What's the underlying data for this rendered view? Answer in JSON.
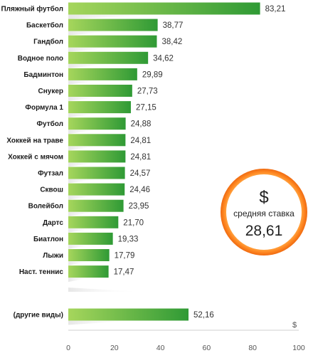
{
  "chart_data": {
    "type": "bar",
    "orientation": "horizontal",
    "categories": [
      "Пляжный футбол",
      "Баскетбол",
      "Гандбол",
      "Водное поло",
      "Бадминтон",
      "Снукер",
      "Формула 1",
      "Футбол",
      "Хоккей на траве",
      "Хоккей с мячом",
      "Футзал",
      "Сквош",
      "Волейбол",
      "Дартс",
      "Биатлон",
      "Лыжи",
      "Наст. теннис",
      "(другие виды)"
    ],
    "values": [
      83.21,
      38.77,
      38.42,
      34.62,
      29.89,
      27.73,
      27.15,
      24.88,
      24.81,
      24.81,
      24.57,
      24.46,
      23.95,
      21.7,
      19.33,
      17.79,
      17.47,
      52.16
    ],
    "value_labels": [
      "83,21",
      "38,77",
      "38,42",
      "34,62",
      "29,89",
      "27,73",
      "27,15",
      "24,88",
      "24,81",
      "24,81",
      "24,57",
      "24,46",
      "23,95",
      "21,70",
      "19,33",
      "17,79",
      "17,47",
      "52,16"
    ],
    "xlim": [
      0,
      100
    ],
    "x_ticks": [
      "0",
      "20",
      "40",
      "60",
      "80",
      "100"
    ],
    "xunit": "$",
    "grid": false,
    "colors": {
      "bar_light": "#9ccc52",
      "bar_dark": "#2f9a35",
      "badge_ring_outer": "#ff7a1a",
      "badge_ring_inner": "#ffb347"
    }
  },
  "badge": {
    "symbol": "$",
    "label": "средняя ставка",
    "value": "28,61"
  }
}
